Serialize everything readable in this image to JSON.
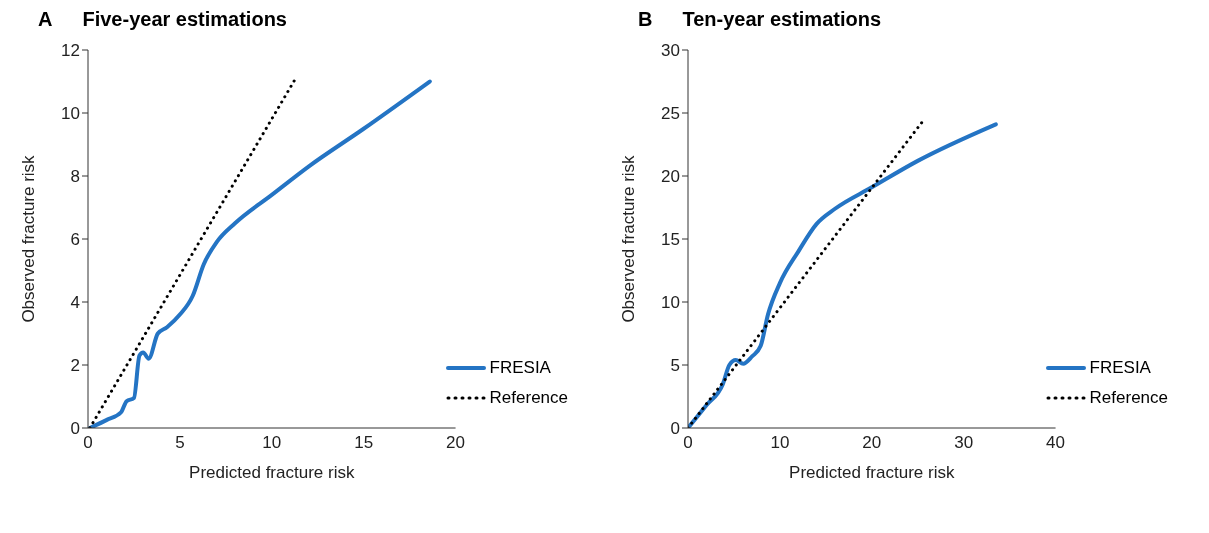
{
  "chart_data": [
    {
      "type": "line",
      "title": "Five-year estimations",
      "annotations": [
        "A"
      ],
      "xlabel": "Predicted fracture risk",
      "ylabel": "Observed fracture risk",
      "xlim": [
        0,
        20
      ],
      "xticks": [
        0,
        5,
        10,
        15,
        20
      ],
      "ylim": [
        0,
        12
      ],
      "yticks": [
        0,
        2,
        4,
        6,
        8,
        10,
        12
      ],
      "grid": false,
      "legend": "bottom right",
      "marker": "none",
      "series": [
        {
          "name": "FRESIA",
          "color": "#2474c4",
          "line_style": "solid",
          "x": [
            0.1,
            1,
            1.8,
            2.1,
            2.5,
            2.8,
            3,
            3.3,
            3.8,
            4.3,
            5,
            5.7,
            6.3,
            7,
            8,
            10,
            12,
            15,
            18.6
          ],
          "values": [
            0,
            0.25,
            0.5,
            0.85,
            0.95,
            2.3,
            2.4,
            2.2,
            3,
            3.2,
            3.6,
            4.2,
            5.2,
            5.9,
            6.5,
            7.4,
            8.3,
            9.5,
            11
          ]
        },
        {
          "name": "Reference",
          "color": "#000000",
          "line_style": "dotted",
          "x": [
            0.1,
            11.3
          ],
          "values": [
            0,
            11.1
          ]
        }
      ]
    },
    {
      "type": "line",
      "title": "Ten-year estimations",
      "annotations": [
        "B"
      ],
      "xlabel": "Predicted fracture risk",
      "ylabel": "Observed fracture risk",
      "xlim": [
        0,
        40
      ],
      "xticks": [
        0,
        10,
        20,
        30,
        40
      ],
      "ylim": [
        0,
        30
      ],
      "yticks": [
        0,
        5,
        10,
        15,
        20,
        25,
        30
      ],
      "grid": false,
      "legend": "bottom right",
      "marker": "none",
      "series": [
        {
          "name": "FRESIA",
          "color": "#2474c4",
          "line_style": "solid",
          "x": [
            0,
            2,
            3.8,
            4.5,
            5.2,
            6,
            7,
            7.9,
            8.7,
            10,
            12,
            14,
            16,
            20,
            25,
            33.5
          ],
          "values": [
            0,
            1.8,
            3.5,
            5,
            5.4,
            5.1,
            5.7,
            6.5,
            9,
            11.5,
            14,
            16.2,
            17.4,
            19.1,
            21.2,
            24.1
          ]
        },
        {
          "name": "Reference",
          "color": "#000000",
          "line_style": "dotted",
          "x": [
            0,
            25.5
          ],
          "values": [
            0,
            24.3
          ]
        }
      ]
    }
  ]
}
